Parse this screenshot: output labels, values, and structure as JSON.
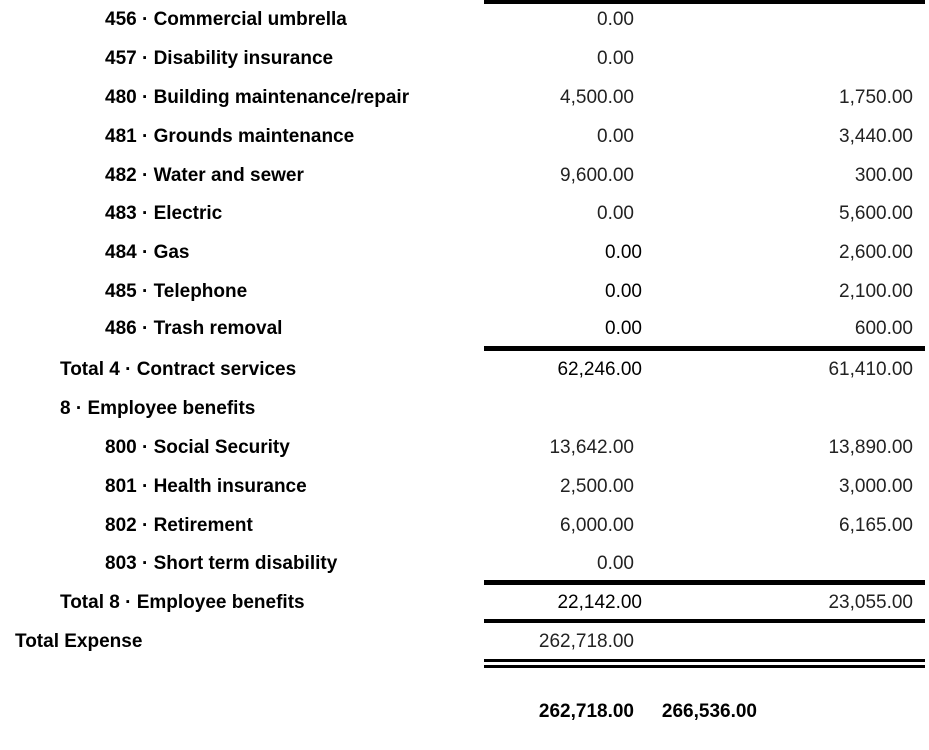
{
  "rows": [
    {
      "label": "456 · Commercial umbrella",
      "level": 2,
      "col1": "0.00",
      "col2": ""
    },
    {
      "label": "457 · Disability insurance",
      "level": 2,
      "col1": "0.00",
      "col2": ""
    },
    {
      "label": "480 · Building maintenance/repair",
      "level": 2,
      "col1": "4,500.00",
      "col2": "1,750.00"
    },
    {
      "label": "481 · Grounds maintenance",
      "level": 2,
      "col1": "0.00",
      "col2": "3,440.00"
    },
    {
      "label": "482 · Water and sewer",
      "level": 2,
      "col1": "9,600.00",
      "col2": "300.00"
    },
    {
      "label": "483 · Electric",
      "level": 2,
      "col1": "0.00",
      "col2": "5,600.00"
    },
    {
      "label": "484 · Gas",
      "level": 2,
      "col1": "0.00",
      "col2": "2,600.00",
      "shift": true
    },
    {
      "label": "485 · Telephone",
      "level": 2,
      "col1": "0.00",
      "col2": "2,100.00",
      "shift": true
    },
    {
      "label": "486 · Trash removal",
      "level": 2,
      "col1": "0.00",
      "col2": "600.00",
      "shift": true
    },
    {
      "label": "Total 4 · Contract services",
      "level": 1,
      "col1": "62,246.00",
      "col2": "61,410.00",
      "shift": true
    },
    {
      "label": "8 · Employee benefits",
      "level": 1,
      "col1": "",
      "col2": ""
    },
    {
      "label": "800 · Social Security",
      "level": 2,
      "col1": "13,642.00",
      "col2": "13,890.00"
    },
    {
      "label": "801 · Health insurance",
      "level": 2,
      "col1": "2,500.00",
      "col2": "3,000.00"
    },
    {
      "label": "802 · Retirement",
      "level": 2,
      "col1": "6,000.00",
      "col2": "6,165.00"
    },
    {
      "label": "803 · Short term disability",
      "level": 2,
      "col1": "0.00",
      "col2": ""
    },
    {
      "label": "Total 8 · Employee benefits",
      "level": 1,
      "col1": "22,142.00",
      "col2": "23,055.00",
      "shift": true
    },
    {
      "label": "Total Expense",
      "level": 0,
      "col1": "262,718.00",
      "col2": ""
    }
  ],
  "grand_total": {
    "col1": "262,718.00",
    "col2": "266,536.00"
  }
}
